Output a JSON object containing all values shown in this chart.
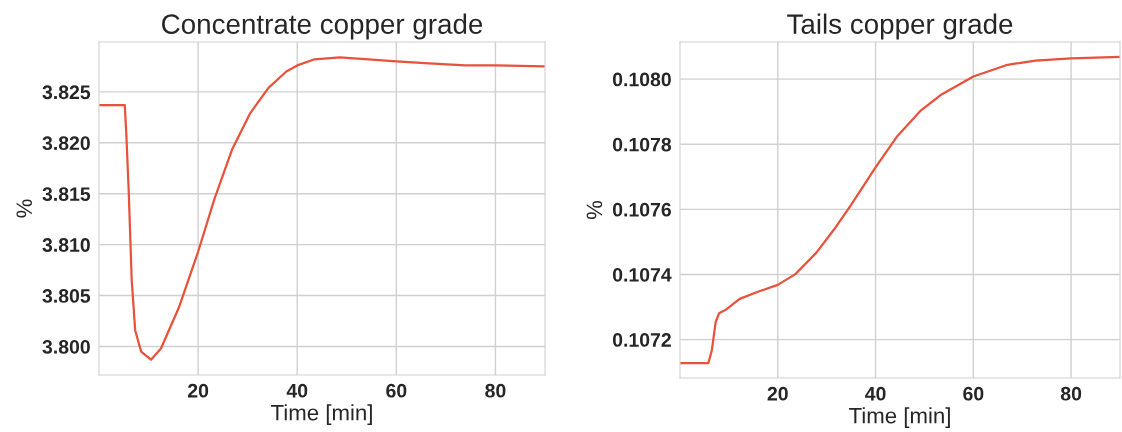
{
  "chart_data": [
    {
      "type": "line",
      "title": "Concentrate copper grade",
      "xlabel": "Time [min]",
      "ylabel": "%",
      "grid": true,
      "marker": "none",
      "line_style": "solid",
      "xlim": [
        0,
        90
      ],
      "xticks": [
        20,
        40,
        60,
        80
      ],
      "ylim": [
        3.7972,
        3.8299
      ],
      "yticks": [
        {
          "value": 3.8,
          "label": "3.800"
        },
        {
          "value": 3.805,
          "label": "3.805"
        },
        {
          "value": 3.81,
          "label": "3.810"
        },
        {
          "value": 3.815,
          "label": "3.815"
        },
        {
          "value": 3.82,
          "label": "3.820"
        },
        {
          "value": 3.825,
          "label": "3.825"
        }
      ],
      "series": [
        {
          "color": "#e8513a",
          "x": [
            0,
            5.2,
            5.5,
            6.0,
            6.6,
            7.3,
            8.5,
            10.5,
            12.5,
            16.1,
            20,
            23.3,
            26.9,
            30.5,
            34.2,
            37.8,
            40,
            43.5,
            48.6,
            54.4,
            60,
            66.6,
            73.9,
            80,
            90
          ],
          "values": [
            3.8237,
            3.8237,
            3.821,
            3.8152,
            3.8065,
            3.8016,
            3.7995,
            3.7987,
            3.7998,
            3.8038,
            3.8093,
            3.8145,
            3.8194,
            3.8229,
            3.8254,
            3.827,
            3.8276,
            3.8282,
            3.8284,
            3.8282,
            3.828,
            3.8278,
            3.8276,
            3.8276,
            3.8275
          ]
        }
      ]
    },
    {
      "type": "line",
      "title": "Tails copper grade",
      "xlabel": "Time [min]",
      "ylabel": "%",
      "grid": true,
      "marker": "none",
      "line_style": "solid",
      "xlim": [
        0,
        90
      ],
      "xticks": [
        20,
        40,
        60,
        80
      ],
      "ylim": [
        0.107082,
        0.108114
      ],
      "yticks": [
        {
          "value": 0.1072,
          "label": "0.1072"
        },
        {
          "value": 0.1074,
          "label": "0.1074"
        },
        {
          "value": 0.1076,
          "label": "0.1076"
        },
        {
          "value": 0.1078,
          "label": "0.1078"
        },
        {
          "value": 0.108,
          "label": "0.1080"
        }
      ],
      "series": [
        {
          "color": "#e8513a",
          "x": [
            0,
            5.8,
            6.5,
            7.3,
            8.0,
            9.4,
            12.2,
            15.8,
            20,
            23.6,
            27.9,
            31.5,
            35,
            40,
            44.3,
            49.3,
            53.5,
            60,
            67,
            72.7,
            80,
            90
          ],
          "values": [
            0.107128,
            0.107128,
            0.107166,
            0.107254,
            0.107281,
            0.107292,
            0.107325,
            0.107346,
            0.107368,
            0.107401,
            0.107467,
            0.107538,
            0.107614,
            0.107729,
            0.107822,
            0.107904,
            0.107953,
            0.108008,
            0.108044,
            0.108057,
            0.108064,
            0.108068
          ]
        }
      ]
    }
  ]
}
